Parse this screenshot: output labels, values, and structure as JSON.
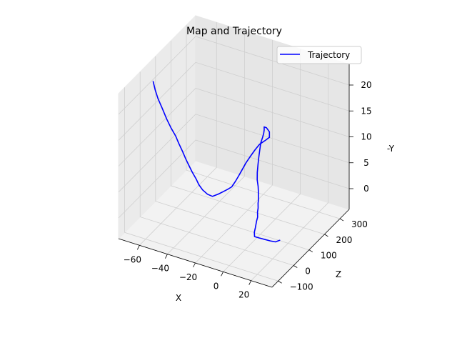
{
  "chart_data": {
    "type": "line",
    "projection": "3d",
    "title": "Map and Trajectory",
    "xlabel": "X",
    "ylabel": "Z",
    "zlabel": "-Y",
    "xlim": [
      -75,
      35
    ],
    "ylim": [
      -140,
      360
    ],
    "zlim": [
      -4,
      24
    ],
    "xticks": [
      -60,
      -40,
      -20,
      0,
      20
    ],
    "xtick_labels": [
      "−60",
      "−40",
      "−20",
      "0",
      "20"
    ],
    "yticks": [
      -100,
      0,
      100,
      200,
      300
    ],
    "ytick_labels": [
      "−100",
      "0",
      "100",
      "200",
      "300"
    ],
    "zticks": [
      0,
      5,
      10,
      15,
      20
    ],
    "ztick_labels": [
      "0",
      "5",
      "10",
      "15",
      "20"
    ],
    "grid": true,
    "legend_position": "top-right",
    "series": [
      {
        "name": "Trajectory",
        "color": "#0000ff",
        "points": [
          [
            25.0,
            0,
            0.0
          ],
          [
            23.5,
            -14.3,
            0.0
          ],
          [
            21.0,
            -25.0,
            0.3
          ],
          [
            18.0,
            -31.5,
            0.5
          ],
          [
            14.5,
            -38.0,
            0.7
          ],
          [
            11.5,
            -41.0,
            0.8
          ],
          [
            10.5,
            -33.0,
            1.3
          ],
          [
            10.0,
            -22.0,
            1.8
          ],
          [
            9.0,
            -5.0,
            2.5
          ],
          [
            8.0,
            11.0,
            2.7
          ],
          [
            6.0,
            28.0,
            3.0
          ],
          [
            5.0,
            41.0,
            3.3
          ],
          [
            3.5,
            54.5,
            3.7
          ],
          [
            2.5,
            66.0,
            3.9
          ],
          [
            1.0,
            79.0,
            4.2
          ],
          [
            -1.0,
            97.0,
            4.4
          ],
          [
            -2.5,
            109.0,
            4.8
          ],
          [
            -4.5,
            121.0,
            5.5
          ],
          [
            -6.0,
            135.0,
            6.4
          ],
          [
            -7.0,
            149.0,
            7.4
          ],
          [
            -8.0,
            163.0,
            8.3
          ],
          [
            -9.0,
            178.0,
            9.1
          ],
          [
            -10.0,
            194.0,
            10.0
          ],
          [
            -10.5,
            210.0,
            10.5
          ],
          [
            -11.0,
            222.0,
            10.9
          ],
          [
            -11.5,
            230.0,
            11.3
          ],
          [
            -12.0,
            234.0,
            11.7
          ],
          [
            -10.0,
            231.0,
            11.8
          ],
          [
            -7.0,
            223.0,
            11.5
          ],
          [
            -6.0,
            214.0,
            10.8
          ],
          [
            -8.0,
            205.0,
            10.3
          ],
          [
            -11.0,
            195.0,
            9.6
          ],
          [
            -13.0,
            184.0,
            8.7
          ],
          [
            -15.0,
            170.0,
            7.6
          ],
          [
            -16.5,
            157.0,
            6.7
          ],
          [
            -17.5,
            143.0,
            5.8
          ],
          [
            -18.5,
            128.0,
            4.9
          ],
          [
            -19.0,
            112.0,
            4.3
          ],
          [
            -20.0,
            96.0,
            3.6
          ],
          [
            -21.0,
            82.0,
            3.5
          ],
          [
            -22.5,
            66.0,
            3.4
          ],
          [
            -24.5,
            50.0,
            3.2
          ],
          [
            -27.0,
            35.0,
            3.0
          ],
          [
            -29.5,
            25.0,
            3.5
          ],
          [
            -32.0,
            16.0,
            4.4
          ],
          [
            -34.0,
            10.0,
            5.4
          ],
          [
            -35.5,
            6.0,
            6.5
          ],
          [
            -38.0,
            3.0,
            7.7
          ],
          [
            -40.0,
            0.0,
            8.9
          ],
          [
            -42.0,
            -3.0,
            10.1
          ],
          [
            -44.0,
            -6.0,
            11.5
          ],
          [
            -46.5,
            -8.0,
            12.9
          ],
          [
            -48.5,
            -10.0,
            14.2
          ],
          [
            -51.5,
            -12.0,
            15.5
          ],
          [
            -54.5,
            -13.0,
            17.0
          ],
          [
            -57.5,
            -14.0,
            18.8
          ],
          [
            -60.5,
            -15.0,
            20.5
          ],
          [
            -62.5,
            -15.3,
            22.0
          ],
          [
            -64.0,
            -15.0,
            23.5
          ]
        ]
      }
    ]
  }
}
